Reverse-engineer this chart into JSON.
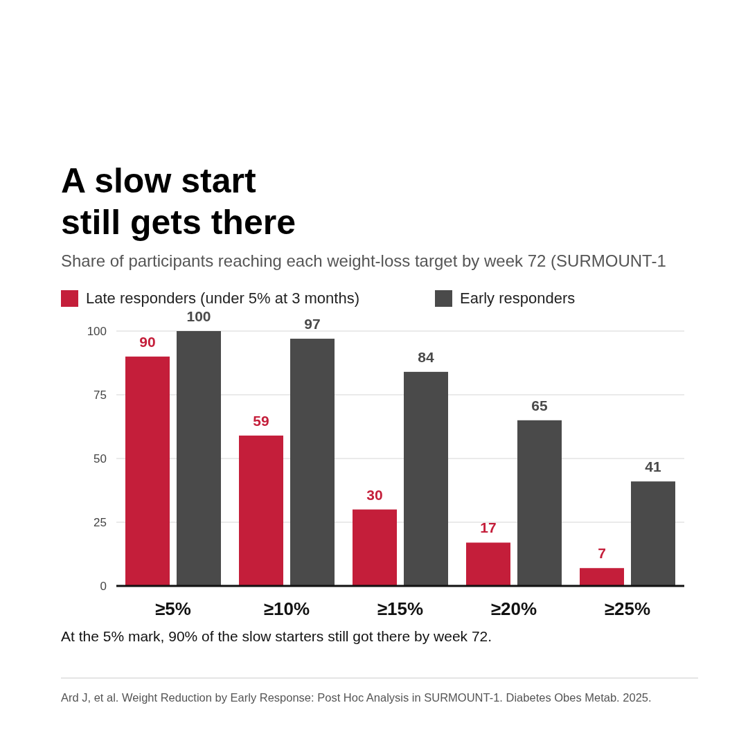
{
  "chart_data": {
    "type": "bar",
    "title": "A slow start\nstill gets there",
    "subtitle": "Share of participants reaching each weight-loss target by week 72 (SURMOUNT-1",
    "categories": [
      "≥5%",
      "≥10%",
      "≥15%",
      "≥20%",
      "≥25%"
    ],
    "series": [
      {
        "name": "Late responders (under 5% at 3 months)",
        "color": "#c41e3a",
        "values": [
          90,
          59,
          30,
          17,
          7
        ]
      },
      {
        "name": "Early responders",
        "color": "#4a4a4a",
        "values": [
          100,
          97,
          84,
          65,
          41
        ]
      }
    ],
    "ylim": [
      0,
      100
    ],
    "yticks": [
      0,
      25,
      50,
      75,
      100
    ],
    "grid": "y",
    "legend": "top left",
    "data_labels": true,
    "annotations": [
      "At the 5% mark, 90% of the slow starters still got there by week 72.",
      "Ard J, et al. Weight Reduction by Early Response: Post Hoc Analysis in SURMOUNT-1. Diabetes Obes Metab. 2025."
    ]
  }
}
